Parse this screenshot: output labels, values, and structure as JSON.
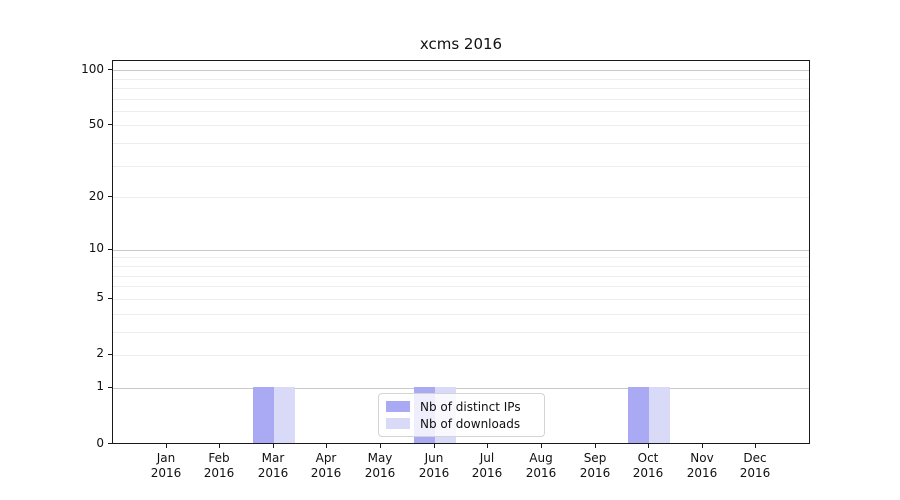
{
  "title": "xcms 2016",
  "legend": {
    "items": [
      {
        "label": "Nb of distinct IPs",
        "color": "#a9a9f4"
      },
      {
        "label": "Nb of downloads",
        "color": "#d9d9f8"
      }
    ]
  },
  "chart_data": {
    "type": "bar",
    "title": "xcms 2016",
    "categories": [
      "Jan",
      "Feb",
      "Mar",
      "Apr",
      "May",
      "Jun",
      "Jul",
      "Aug",
      "Sep",
      "Oct",
      "Nov",
      "Dec"
    ],
    "tick_year": "2016",
    "series": [
      {
        "name": "Nb of distinct IPs",
        "color": "#a9a9f4",
        "values": [
          0,
          0,
          1,
          0,
          0,
          1,
          0,
          0,
          0,
          1,
          0,
          0
        ]
      },
      {
        "name": "Nb of downloads",
        "color": "#d9d9f8",
        "values": [
          0,
          0,
          1,
          0,
          0,
          1,
          0,
          0,
          0,
          1,
          0,
          0
        ]
      }
    ],
    "xlabel": "",
    "ylabel": "",
    "yscale": "log(1+x)",
    "yticks": [
      0,
      1,
      2,
      5,
      10,
      20,
      50,
      100
    ],
    "major_gridlines": [
      1,
      10,
      100
    ],
    "minor_gridlines": [
      2,
      3,
      4,
      5,
      6,
      7,
      8,
      9,
      20,
      30,
      40,
      50,
      60,
      70,
      80,
      90
    ],
    "ylim": [
      0,
      112
    ],
    "grid": true,
    "legend_position": "lower center",
    "colors": {
      "major_grid": "#c9c9c9",
      "minor_grid": "#ededed",
      "spine": "#1a1a1a",
      "text": "#111111"
    }
  }
}
